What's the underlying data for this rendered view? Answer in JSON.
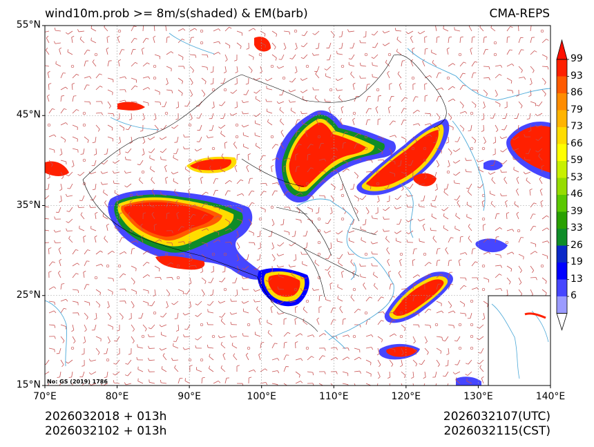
{
  "title": {
    "left": "wind10m.prob >= 8m/s(shaded) & EM(barb)",
    "right": "CMA-REPS"
  },
  "axes": {
    "lat_labels": [
      "55°N",
      "45°N",
      "35°N",
      "25°N",
      "15°N"
    ],
    "lon_labels": [
      "70°E",
      "80°E",
      "90°E",
      "100°E",
      "110°E",
      "120°E",
      "130°E",
      "140°E"
    ],
    "lat_values": [
      55,
      45,
      35,
      25,
      15
    ],
    "lon_values": [
      70,
      80,
      90,
      100,
      110,
      120,
      130,
      140
    ]
  },
  "colorbar": {
    "levels": [
      "99",
      "93",
      "86",
      "79",
      "73",
      "66",
      "59",
      "53",
      "46",
      "39",
      "33",
      "26",
      "19",
      "13",
      "6"
    ],
    "colors": [
      "#ff2000",
      "#ff5a00",
      "#ff8c00",
      "#ffb400",
      "#ffdc00",
      "#ffff00",
      "#c8f000",
      "#96dc00",
      "#5ac800",
      "#28a000",
      "#0f8c28",
      "#0a28c8",
      "#0000ff",
      "#4646ff",
      "#9b9bff"
    ],
    "over_color": "#ff1000",
    "under_color": "#ffffff"
  },
  "note": "No: GS (2019) 1786",
  "footer": {
    "left_line1": "2026032018  +  013h",
    "left_line2": "2026032102  +  013h",
    "right_line1": "2026032107(UTC)",
    "right_line2": "2026032115(CST)"
  },
  "colors": {
    "barb": "#c85050",
    "coast": "#4aa8d8",
    "border": "#000000",
    "grid": "#a0a0a0"
  },
  "shaded_regions": [
    {
      "name": "tibetan-plateau",
      "probability": 99
    },
    {
      "name": "north-china-inner-mongolia",
      "probability": 99
    },
    {
      "name": "northeast-china",
      "probability": 99
    },
    {
      "name": "yunnan-guizhou",
      "probability": 99
    },
    {
      "name": "taiwan-strait",
      "probability": 99
    },
    {
      "name": "east-sea-of-japan",
      "probability": 99
    },
    {
      "name": "south-china-sea-east",
      "probability": 93
    }
  ]
}
